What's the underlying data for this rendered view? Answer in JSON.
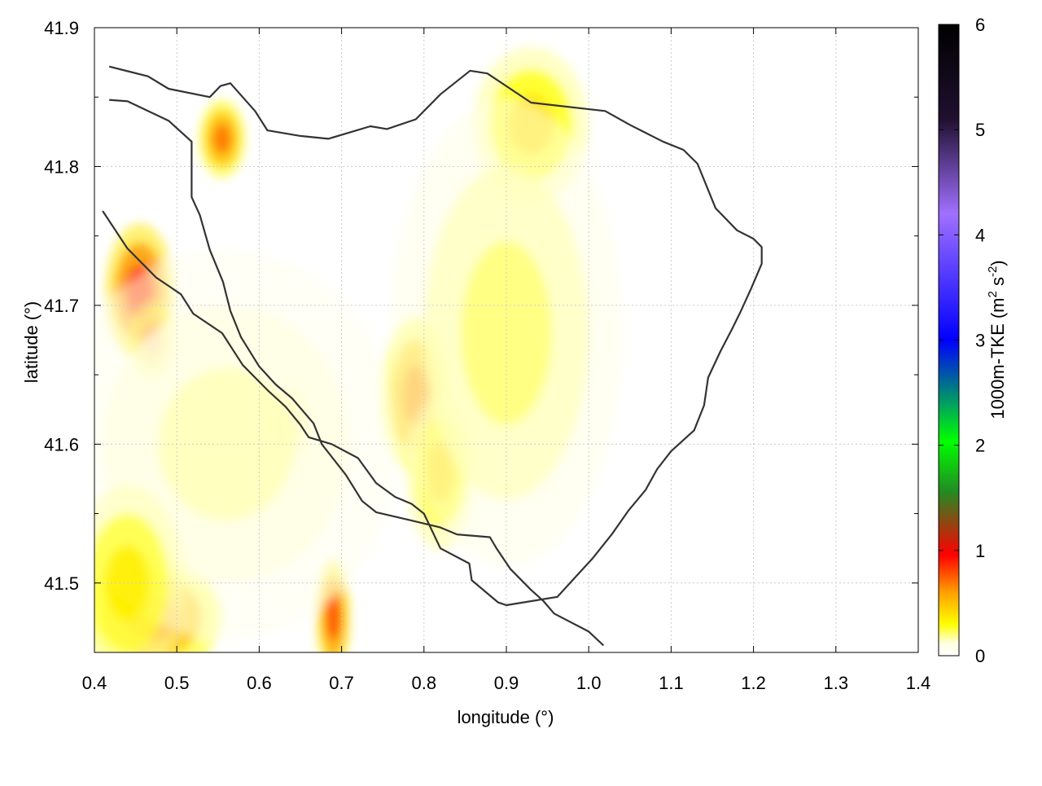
{
  "chart_data": {
    "type": "heatmap",
    "title": "",
    "xlabel": "longitude (°)",
    "ylabel": "latitude (°)",
    "xlim": [
      0.4,
      1.4
    ],
    "ylim": [
      41.45,
      41.9
    ],
    "x_ticks": [
      "0.4",
      "0.5",
      "0.6",
      "0.7",
      "0.8",
      "0.9",
      "1.0",
      "1.1",
      "1.2",
      "1.3",
      "1.4"
    ],
    "y_ticks": [
      "41.5",
      "41.6",
      "41.7",
      "41.8",
      "41.9"
    ],
    "grid": true,
    "colorbar": {
      "label_main": "1000m-TKE (m",
      "label_sup1": "2",
      "label_mid": " s",
      "label_sup2": "-2",
      "label_end": ")",
      "range": [
        0,
        6
      ],
      "ticks": [
        "0",
        "1",
        "2",
        "3",
        "4",
        "5",
        "6"
      ],
      "colors": [
        "#ffffff",
        "#ffff00",
        "#ffa000",
        "#ff0000",
        "#228b22",
        "#00ff00",
        "#0000ff",
        "#a070ff",
        "#201030",
        "#000000"
      ]
    },
    "hotspots": [
      {
        "lon": 0.455,
        "lat": 41.71,
        "tke": 0.85,
        "rx": 0.03,
        "ry": 0.035
      },
      {
        "lon": 0.47,
        "lat": 41.675,
        "tke": 0.7,
        "rx": 0.02,
        "ry": 0.02
      },
      {
        "lon": 0.555,
        "lat": 41.82,
        "tke": 0.7,
        "rx": 0.02,
        "ry": 0.02
      },
      {
        "lon": 0.79,
        "lat": 41.635,
        "tke": 0.6,
        "rx": 0.03,
        "ry": 0.04
      },
      {
        "lon": 0.82,
        "lat": 41.58,
        "tke": 0.4,
        "rx": 0.03,
        "ry": 0.04
      },
      {
        "lon": 0.635,
        "lat": 41.615,
        "tke": 0.45,
        "rx": 0.02,
        "ry": 0.02
      },
      {
        "lon": 0.69,
        "lat": 41.475,
        "tke": 0.8,
        "rx": 0.015,
        "ry": 0.03
      },
      {
        "lon": 0.47,
        "lat": 41.475,
        "tke": 0.65,
        "rx": 0.06,
        "ry": 0.03
      },
      {
        "lon": 0.93,
        "lat": 41.83,
        "tke": 0.4,
        "rx": 0.05,
        "ry": 0.04
      },
      {
        "lon": 0.9,
        "lat": 41.68,
        "tke": 0.2,
        "rx": 0.1,
        "ry": 0.12
      },
      {
        "lon": 0.56,
        "lat": 41.6,
        "tke": 0.15,
        "rx": 0.15,
        "ry": 0.1
      },
      {
        "lon": 0.44,
        "lat": 41.5,
        "tke": 0.35,
        "rx": 0.05,
        "ry": 0.05
      }
    ],
    "contours": [
      [
        [
          0.418,
          41.872
        ],
        [
          0.465,
          41.865
        ],
        [
          0.49,
          41.856
        ],
        [
          0.54,
          41.85
        ],
        [
          0.553,
          41.858
        ],
        [
          0.565,
          41.86
        ],
        [
          0.595,
          41.84
        ],
        [
          0.61,
          41.826
        ],
        [
          0.65,
          41.822
        ],
        [
          0.684,
          41.82
        ],
        [
          0.735,
          41.829
        ],
        [
          0.755,
          41.827
        ],
        [
          0.79,
          41.834
        ],
        [
          0.82,
          41.852
        ],
        [
          0.856,
          41.869
        ],
        [
          0.877,
          41.867
        ],
        [
          0.93,
          41.846
        ],
        [
          1.02,
          41.84
        ],
        [
          1.05,
          41.83
        ],
        [
          1.09,
          41.818
        ],
        [
          1.115,
          41.812
        ],
        [
          1.132,
          41.802
        ],
        [
          1.154,
          41.77
        ],
        [
          1.18,
          41.754
        ],
        [
          1.2,
          41.748
        ],
        [
          1.21,
          41.742
        ],
        [
          1.21,
          41.73
        ],
        [
          1.197,
          41.712
        ],
        [
          1.184,
          41.695
        ],
        [
          1.174,
          41.683
        ],
        [
          1.16,
          41.667
        ],
        [
          1.145,
          41.648
        ],
        [
          1.14,
          41.628
        ],
        [
          1.128,
          41.61
        ],
        [
          1.1,
          41.595
        ],
        [
          1.083,
          41.582
        ],
        [
          1.069,
          41.567
        ],
        [
          1.048,
          41.552
        ],
        [
          1.028,
          41.535
        ],
        [
          1.005,
          41.518
        ],
        [
          0.985,
          41.505
        ],
        [
          0.962,
          41.49
        ],
        [
          0.9,
          41.484
        ],
        [
          0.89,
          41.486
        ],
        [
          0.858,
          41.502
        ],
        [
          0.855,
          41.514
        ],
        [
          0.82,
          41.525
        ],
        [
          0.8,
          41.55
        ],
        [
          0.785,
          41.557
        ],
        [
          0.765,
          41.562
        ],
        [
          0.742,
          41.572
        ],
        [
          0.72,
          41.59
        ],
        [
          0.688,
          41.6
        ],
        [
          0.66,
          41.605
        ],
        [
          0.65,
          41.614
        ],
        [
          0.632,
          41.627
        ],
        [
          0.61,
          41.639
        ],
        [
          0.58,
          41.657
        ],
        [
          0.555,
          41.68
        ],
        [
          0.52,
          41.694
        ],
        [
          0.505,
          41.708
        ],
        [
          0.49,
          41.714
        ],
        [
          0.475,
          41.72
        ],
        [
          0.44,
          41.741
        ],
        [
          0.41,
          41.768
        ]
      ],
      [
        [
          0.418,
          41.848
        ],
        [
          0.44,
          41.847
        ],
        [
          0.49,
          41.833
        ],
        [
          0.518,
          41.818
        ],
        [
          0.518,
          41.778
        ],
        [
          0.528,
          41.765
        ],
        [
          0.54,
          41.74
        ],
        [
          0.556,
          41.717
        ],
        [
          0.565,
          41.696
        ],
        [
          0.578,
          41.677
        ],
        [
          0.6,
          41.656
        ],
        [
          0.62,
          41.643
        ],
        [
          0.64,
          41.633
        ],
        [
          0.666,
          41.615
        ],
        [
          0.676,
          41.6
        ],
        [
          0.705,
          41.578
        ],
        [
          0.725,
          41.559
        ],
        [
          0.742,
          41.551
        ],
        [
          0.785,
          41.545
        ],
        [
          0.82,
          41.54
        ],
        [
          0.84,
          41.535
        ],
        [
          0.88,
          41.533
        ],
        [
          0.888,
          41.525
        ],
        [
          0.905,
          41.51
        ],
        [
          0.93,
          41.495
        ],
        [
          0.945,
          41.487
        ],
        [
          0.958,
          41.478
        ],
        [
          1.0,
          41.465
        ],
        [
          1.018,
          41.455
        ]
      ]
    ]
  }
}
